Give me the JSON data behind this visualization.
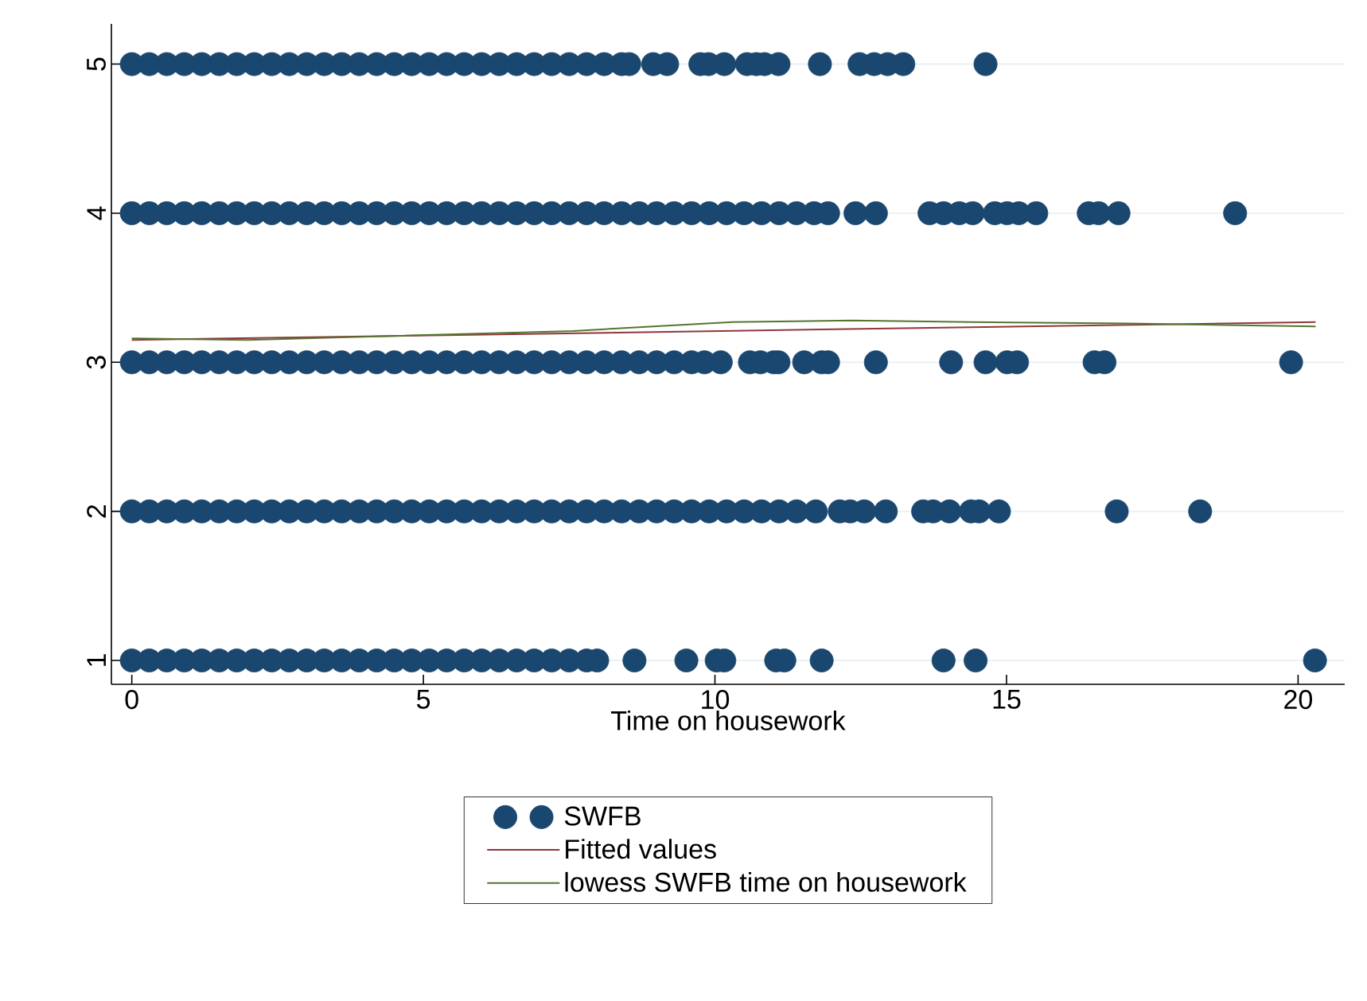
{
  "chart_data": {
    "type": "scatter",
    "xlabel": "Time on housework",
    "xlim": [
      -0.35,
      20.8
    ],
    "ylim": [
      0.84,
      5.27
    ],
    "xticks": [
      0,
      5,
      10,
      15,
      20
    ],
    "yticks": [
      1,
      2,
      3,
      4,
      5
    ],
    "grid": "y",
    "legend": "bottom",
    "series": [
      {
        "name": "SWFB",
        "type": "scatter",
        "marker": "circle",
        "color": "#1a476f",
        "x": [
          0,
          0.3,
          0.6,
          0.9,
          1.2,
          1.5,
          1.8,
          2.1,
          2.4,
          2.7,
          3,
          3.3,
          3.6,
          3.9,
          4.2,
          4.5,
          4.8,
          5.1,
          5.4,
          5.7,
          6,
          6.3,
          6.6,
          6.9,
          7.2,
          7.5,
          7.8,
          8.1,
          8.4,
          8.53,
          8.94,
          9.18,
          9.75,
          9.89,
          10.16,
          10.55,
          10.71,
          10.85,
          11.09,
          11.8,
          12.48,
          12.73,
          12.96,
          13.23,
          14.64,
          0,
          0.3,
          0.6,
          0.9,
          1.2,
          1.5,
          1.8,
          2.1,
          2.4,
          2.7,
          3,
          3.3,
          3.6,
          3.9,
          4.2,
          4.5,
          4.8,
          5.1,
          5.4,
          5.7,
          6,
          6.3,
          6.6,
          6.9,
          7.2,
          7.5,
          7.8,
          8.1,
          8.4,
          8.7,
          9,
          9.3,
          9.6,
          9.9,
          10.2,
          10.5,
          10.8,
          11.1,
          11.4,
          11.7,
          11.94,
          12.41,
          12.76,
          13.68,
          13.92,
          14.19,
          14.42,
          14.8,
          15.01,
          15.21,
          15.51,
          16.41,
          16.58,
          16.92,
          18.92,
          0,
          0.3,
          0.6,
          0.9,
          1.2,
          1.5,
          1.8,
          2.1,
          2.4,
          2.7,
          3,
          3.3,
          3.6,
          3.9,
          4.2,
          4.5,
          4.8,
          5.1,
          5.4,
          5.7,
          6,
          6.3,
          6.6,
          6.9,
          7.2,
          7.5,
          7.8,
          8.1,
          8.4,
          8.7,
          9,
          9.3,
          9.6,
          9.82,
          10.1,
          10.6,
          10.78,
          11.01,
          11.09,
          11.53,
          11.83,
          11.94,
          12.76,
          14.05,
          14.64,
          15.01,
          15.18,
          16.51,
          16.68,
          19.88,
          0,
          0.3,
          0.6,
          0.9,
          1.2,
          1.5,
          1.8,
          2.1,
          2.4,
          2.7,
          3,
          3.3,
          3.6,
          3.9,
          4.2,
          4.5,
          4.8,
          5.1,
          5.4,
          5.7,
          6,
          6.3,
          6.6,
          6.9,
          7.2,
          7.5,
          7.8,
          8.1,
          8.4,
          8.7,
          9,
          9.3,
          9.6,
          9.9,
          10.2,
          10.5,
          10.8,
          11.1,
          11.4,
          11.73,
          12.14,
          12.32,
          12.56,
          12.93,
          13.57,
          13.74,
          14.02,
          14.39,
          14.53,
          14.87,
          16.89,
          18.32,
          0,
          0.3,
          0.6,
          0.9,
          1.2,
          1.5,
          1.8,
          2.1,
          2.4,
          2.7,
          3,
          3.3,
          3.6,
          3.9,
          4.2,
          4.5,
          4.8,
          5.1,
          5.4,
          5.7,
          6,
          6.3,
          6.6,
          6.9,
          7.2,
          7.5,
          7.8,
          7.98,
          8.62,
          9.51,
          10.03,
          10.16,
          11.05,
          11.19,
          11.83,
          13.92,
          14.47,
          20.29
        ],
        "values": [
          5,
          5,
          5,
          5,
          5,
          5,
          5,
          5,
          5,
          5,
          5,
          5,
          5,
          5,
          5,
          5,
          5,
          5,
          5,
          5,
          5,
          5,
          5,
          5,
          5,
          5,
          5,
          5,
          5,
          5,
          5,
          5,
          5,
          5,
          5,
          5,
          5,
          5,
          5,
          5,
          5,
          5,
          5,
          5,
          5,
          4,
          4,
          4,
          4,
          4,
          4,
          4,
          4,
          4,
          4,
          4,
          4,
          4,
          4,
          4,
          4,
          4,
          4,
          4,
          4,
          4,
          4,
          4,
          4,
          4,
          4,
          4,
          4,
          4,
          4,
          4,
          4,
          4,
          4,
          4,
          4,
          4,
          4,
          4,
          4,
          4,
          4,
          4,
          4,
          4,
          4,
          4,
          4,
          4,
          4,
          4,
          4,
          4,
          4,
          4,
          3,
          3,
          3,
          3,
          3,
          3,
          3,
          3,
          3,
          3,
          3,
          3,
          3,
          3,
          3,
          3,
          3,
          3,
          3,
          3,
          3,
          3,
          3,
          3,
          3,
          3,
          3,
          3,
          3,
          3,
          3,
          3,
          3,
          3,
          3,
          3,
          3,
          3,
          3,
          3,
          3,
          3,
          3,
          3,
          3,
          3,
          3,
          3,
          3,
          3,
          2,
          2,
          2,
          2,
          2,
          2,
          2,
          2,
          2,
          2,
          2,
          2,
          2,
          2,
          2,
          2,
          2,
          2,
          2,
          2,
          2,
          2,
          2,
          2,
          2,
          2,
          2,
          2,
          2,
          2,
          2,
          2,
          2,
          2,
          2,
          2,
          2,
          2,
          2,
          2,
          2,
          2,
          2,
          2,
          2,
          2,
          2,
          2,
          2,
          2,
          2,
          2,
          1,
          1,
          1,
          1,
          1,
          1,
          1,
          1,
          1,
          1,
          1,
          1,
          1,
          1,
          1,
          1,
          1,
          1,
          1,
          1,
          1,
          1,
          1,
          1,
          1,
          1,
          1,
          1,
          1,
          1,
          1,
          1,
          1,
          1,
          1,
          1,
          1,
          1
        ]
      },
      {
        "name": "Fitted values",
        "type": "line",
        "marker": "none",
        "color": "#90353b",
        "x": [
          0,
          20.3
        ],
        "values": [
          3.15,
          3.27
        ]
      },
      {
        "name": "lowess SWFB time on housework",
        "type": "line",
        "marker": "none",
        "color": "#55752f",
        "x": [
          0,
          1.98,
          7.57,
          10.3,
          12.35,
          14.4,
          17.1,
          20.3
        ],
        "values": [
          3.16,
          3.15,
          3.21,
          3.27,
          3.28,
          3.27,
          3.26,
          3.24
        ]
      }
    ]
  }
}
